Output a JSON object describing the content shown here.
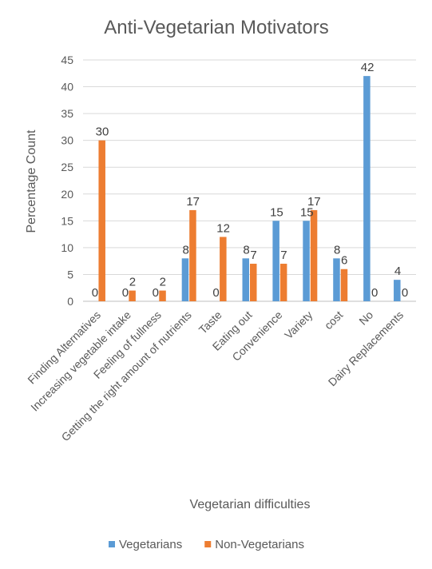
{
  "chart_data": {
    "type": "bar",
    "title": "Anti-Vegetarian Motivators",
    "xlabel": "Vegetarian difficulties",
    "ylabel": "Percentage Count",
    "ylim": [
      0,
      45
    ],
    "yticks": [
      0,
      5,
      10,
      15,
      20,
      25,
      30,
      35,
      40,
      45
    ],
    "grid": true,
    "legend_position": "bottom",
    "categories": [
      "Finding Alternatives",
      "Increasing vegetable intake",
      "Feeling of fullness",
      "Getting the right amount of nutrients",
      "Taste",
      "Eating out",
      "Convenience",
      "Variety",
      "cost",
      "No",
      "Dairy Replacements"
    ],
    "series": [
      {
        "name": "Vegetarians",
        "color": "#5b9bd5",
        "values": [
          0,
          0,
          0,
          8,
          0,
          8,
          15,
          15,
          8,
          42,
          4
        ]
      },
      {
        "name": "Non-Vegetarians",
        "color": "#ed7d31",
        "values": [
          30,
          2,
          2,
          17,
          12,
          7,
          7,
          17,
          6,
          0,
          0
        ]
      }
    ]
  }
}
